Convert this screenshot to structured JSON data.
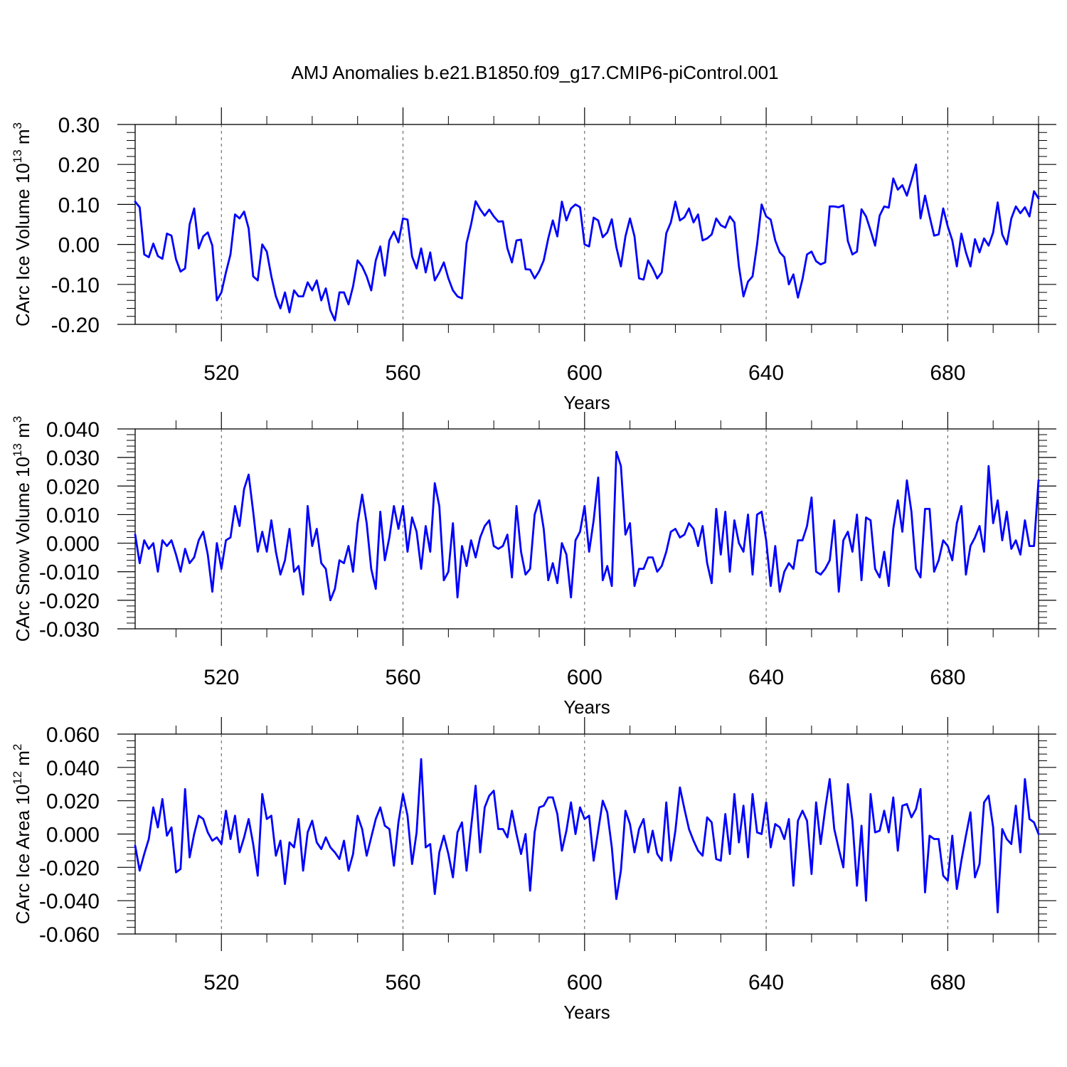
{
  "figure": {
    "title": "AMJ Anomalies b.e21.B1850.f09_g17.CMIP6-piControl.001"
  },
  "chart_data": [
    {
      "type": "line",
      "title": "AMJ Anomalies b.e21.B1850.f09_g17.CMIP6-piControl.001",
      "xlabel": "Years",
      "ylabel_text": "CArc Ice Volume 10",
      "ylabel_exp": "13",
      "ylabel_unit": " m",
      "ylabel_unit_exp": "3",
      "xlim": [
        501,
        700
      ],
      "ylim": [
        -0.2,
        0.3
      ],
      "yticks": [
        -0.2,
        -0.1,
        0.0,
        0.1,
        0.2,
        0.3
      ],
      "ytick_labels": [
        "-0.20",
        "-0.10",
        "0.00",
        "0.10",
        "0.20",
        "0.30"
      ],
      "xticks": [
        520,
        560,
        600,
        640,
        680
      ],
      "xtick_labels": [
        "520",
        "560",
        "600",
        "640",
        "680"
      ],
      "series": [
        {
          "name": "CArc Ice Volume",
          "color": "#0000ff",
          "x_start": 501,
          "values": [
            0.107,
            0.093,
            -0.025,
            -0.032,
            0.002,
            -0.029,
            -0.036,
            0.027,
            0.022,
            -0.037,
            -0.068,
            -0.06,
            0.05,
            0.09,
            -0.01,
            0.02,
            0.03,
            -0.003,
            -0.14,
            -0.12,
            -0.07,
            -0.025,
            0.075,
            0.065,
            0.082,
            0.04,
            -0.08,
            -0.09,
            0.0,
            -0.018,
            -0.08,
            -0.13,
            -0.16,
            -0.12,
            -0.17,
            -0.115,
            -0.13,
            -0.13,
            -0.095,
            -0.115,
            -0.09,
            -0.14,
            -0.11,
            -0.165,
            -0.19,
            -0.12,
            -0.12,
            -0.15,
            -0.105,
            -0.04,
            -0.055,
            -0.08,
            -0.115,
            -0.04,
            -0.005,
            -0.078,
            0.01,
            0.032,
            0.005,
            0.065,
            0.062,
            -0.03,
            -0.06,
            -0.01,
            -0.07,
            -0.02,
            -0.09,
            -0.07,
            -0.045,
            -0.085,
            -0.115,
            -0.13,
            -0.135,
            0.003,
            0.05,
            0.108,
            0.088,
            0.072,
            0.087,
            0.07,
            0.057,
            0.058,
            -0.01,
            -0.045,
            0.01,
            0.012,
            -0.062,
            -0.063,
            -0.085,
            -0.067,
            -0.04,
            0.015,
            0.06,
            0.02,
            0.107,
            0.06,
            0.09,
            0.1,
            0.093,
            0.0,
            -0.005,
            0.067,
            0.06,
            0.018,
            0.03,
            0.063,
            -0.007,
            -0.055,
            0.02,
            0.065,
            0.02,
            -0.085,
            -0.088,
            -0.04,
            -0.06,
            -0.085,
            -0.07,
            0.028,
            0.055,
            0.107,
            0.06,
            0.068,
            0.09,
            0.055,
            0.075,
            0.01,
            0.015,
            0.025,
            0.065,
            0.048,
            0.042,
            0.07,
            0.055,
            -0.055,
            -0.13,
            -0.093,
            -0.08,
            0.0,
            0.1,
            0.07,
            0.062,
            0.01,
            -0.02,
            -0.032,
            -0.1,
            -0.075,
            -0.133,
            -0.087,
            -0.025,
            -0.018,
            -0.042,
            -0.05,
            -0.045,
            0.095,
            0.095,
            0.093,
            0.098,
            0.008,
            -0.025,
            -0.018,
            0.088,
            0.07,
            0.035,
            -0.003,
            0.072,
            0.095,
            0.092,
            0.165,
            0.137,
            0.148,
            0.122,
            0.16,
            0.2,
            0.065,
            0.122,
            0.07,
            0.022,
            0.025,
            0.09,
            0.045,
            0.01,
            -0.055,
            0.027,
            -0.02,
            -0.055,
            0.013,
            -0.02,
            0.015,
            -0.003,
            0.03,
            0.105,
            0.025,
            0.0,
            0.065,
            0.095,
            0.078,
            0.093,
            0.07,
            0.133,
            0.115
          ]
        }
      ]
    },
    {
      "type": "line",
      "xlabel": "Years",
      "ylabel_text": "CArc Snow Volume 10",
      "ylabel_exp": "13",
      "ylabel_unit": " m",
      "ylabel_unit_exp": "3",
      "xlim": [
        501,
        700
      ],
      "ylim": [
        -0.03,
        0.04
      ],
      "yticks": [
        -0.03,
        -0.02,
        -0.01,
        0.0,
        0.01,
        0.02,
        0.03,
        0.04
      ],
      "ytick_labels": [
        "-0.030",
        "-0.020",
        "-0.010",
        "0.000",
        "0.010",
        "0.020",
        "0.030",
        "0.040"
      ],
      "xticks": [
        520,
        560,
        600,
        640,
        680
      ],
      "xtick_labels": [
        "520",
        "560",
        "600",
        "640",
        "680"
      ],
      "series": [
        {
          "name": "CArc Snow Volume",
          "color": "#0000ff",
          "x_start": 501,
          "values": [
            0.003,
            -0.007,
            0.001,
            -0.002,
            0.0,
            -0.01,
            0.001,
            -0.001,
            0.001,
            -0.004,
            -0.01,
            -0.002,
            -0.007,
            -0.005,
            0.001,
            0.004,
            -0.004,
            -0.017,
            0.0,
            -0.009,
            0.001,
            0.002,
            0.013,
            0.006,
            0.019,
            0.024,
            0.011,
            -0.003,
            0.004,
            -0.003,
            0.008,
            -0.003,
            -0.011,
            -0.006,
            0.005,
            -0.01,
            -0.008,
            -0.018,
            0.013,
            -0.001,
            0.005,
            -0.007,
            -0.009,
            -0.02,
            -0.016,
            -0.006,
            -0.007,
            -0.001,
            -0.01,
            0.007,
            0.017,
            0.007,
            -0.009,
            -0.016,
            0.011,
            -0.006,
            0.002,
            0.013,
            0.005,
            0.013,
            -0.003,
            0.009,
            0.004,
            -0.009,
            0.006,
            -0.003,
            0.021,
            0.013,
            -0.013,
            -0.01,
            0.007,
            -0.019,
            -0.001,
            -0.008,
            0.001,
            -0.005,
            0.002,
            0.006,
            0.008,
            -0.001,
            -0.002,
            -0.001,
            0.003,
            -0.012,
            0.013,
            -0.003,
            -0.011,
            -0.009,
            0.01,
            0.015,
            0.005,
            -0.013,
            -0.007,
            -0.014,
            0.0,
            -0.004,
            -0.019,
            0.001,
            0.004,
            0.013,
            -0.003,
            0.008,
            0.023,
            -0.013,
            -0.008,
            -0.015,
            0.032,
            0.027,
            0.003,
            0.007,
            -0.015,
            -0.009,
            -0.009,
            -0.005,
            -0.005,
            -0.01,
            -0.008,
            -0.003,
            0.004,
            0.005,
            0.002,
            0.003,
            0.007,
            0.005,
            -0.001,
            0.006,
            -0.007,
            -0.014,
            0.012,
            -0.004,
            0.011,
            -0.01,
            0.008,
            0.0,
            -0.003,
            0.01,
            -0.011,
            0.01,
            0.011,
            0.001,
            -0.015,
            -0.001,
            -0.017,
            -0.01,
            -0.007,
            -0.009,
            0.001,
            0.001,
            0.006,
            0.016,
            -0.01,
            -0.011,
            -0.009,
            -0.006,
            0.008,
            -0.017,
            0.001,
            0.004,
            -0.003,
            0.01,
            -0.013,
            0.009,
            0.008,
            -0.009,
            -0.012,
            -0.003,
            -0.015,
            0.005,
            0.015,
            0.004,
            0.022,
            0.011,
            -0.009,
            -0.012,
            0.012,
            0.012,
            -0.01,
            -0.006,
            0.001,
            -0.001,
            -0.006,
            0.007,
            0.013,
            -0.011,
            -0.001,
            0.002,
            0.006,
            -0.003,
            0.027,
            0.007,
            0.015,
            0.001,
            0.011,
            -0.002,
            0.001,
            -0.004,
            0.008,
            -0.001,
            -0.001,
            0.022
          ]
        }
      ]
    },
    {
      "type": "line",
      "xlabel": "Years",
      "ylabel_text": "CArc Ice Area 10",
      "ylabel_exp": "12",
      "ylabel_unit": " m",
      "ylabel_unit_exp": "2",
      "xlim": [
        501,
        700
      ],
      "ylim": [
        -0.06,
        0.06
      ],
      "yticks": [
        -0.06,
        -0.04,
        -0.02,
        0.0,
        0.02,
        0.04,
        0.06
      ],
      "ytick_labels": [
        "-0.060",
        "-0.040",
        "-0.020",
        "0.000",
        "0.020",
        "0.040",
        "0.060"
      ],
      "xticks": [
        520,
        560,
        600,
        640,
        680
      ],
      "xtick_labels": [
        "520",
        "560",
        "600",
        "640",
        "680"
      ],
      "series": [
        {
          "name": "CArc Ice Area",
          "color": "#0000ff",
          "x_start": 501,
          "values": [
            -0.007,
            -0.022,
            -0.012,
            -0.003,
            0.016,
            0.004,
            0.021,
            -0.001,
            0.004,
            -0.023,
            -0.021,
            0.027,
            -0.014,
            0.0,
            0.011,
            0.009,
            0.001,
            -0.004,
            -0.002,
            -0.006,
            0.014,
            -0.003,
            0.011,
            -0.011,
            -0.002,
            0.009,
            -0.006,
            -0.025,
            0.024,
            0.009,
            0.011,
            -0.013,
            -0.004,
            -0.03,
            -0.005,
            -0.008,
            0.009,
            -0.022,
            0.001,
            0.008,
            -0.005,
            -0.009,
            -0.002,
            -0.008,
            -0.011,
            -0.015,
            -0.004,
            -0.022,
            -0.012,
            0.011,
            0.003,
            -0.013,
            -0.002,
            0.009,
            0.016,
            0.005,
            0.003,
            -0.019,
            0.007,
            0.024,
            0.011,
            -0.018,
            0.001,
            0.045,
            -0.008,
            -0.006,
            -0.036,
            -0.011,
            -0.001,
            -0.012,
            -0.026,
            0.001,
            0.007,
            -0.022,
            0.004,
            0.029,
            -0.011,
            0.016,
            0.023,
            0.026,
            0.003,
            0.003,
            -0.002,
            0.014,
            0.0,
            -0.012,
            0.0,
            -0.034,
            0.001,
            0.016,
            0.017,
            0.022,
            0.022,
            0.012,
            -0.01,
            0.002,
            0.019,
            0.0,
            0.016,
            0.009,
            0.011,
            -0.016,
            0.002,
            0.02,
            0.013,
            -0.008,
            -0.039,
            -0.022,
            0.014,
            0.006,
            -0.011,
            0.003,
            0.009,
            -0.011,
            0.002,
            -0.012,
            -0.016,
            0.019,
            -0.016,
            0.002,
            0.028,
            0.015,
            0.003,
            -0.004,
            -0.01,
            -0.013,
            0.01,
            0.007,
            -0.015,
            -0.016,
            0.012,
            -0.012,
            0.024,
            -0.005,
            0.017,
            -0.014,
            0.024,
            0.001,
            0.0,
            0.019,
            -0.008,
            0.006,
            0.004,
            -0.003,
            0.009,
            -0.031,
            0.008,
            0.014,
            0.008,
            -0.024,
            0.019,
            -0.006,
            0.015,
            0.033,
            0.003,
            -0.009,
            -0.02,
            0.03,
            0.008,
            -0.031,
            0.005,
            -0.04,
            0.024,
            0.001,
            0.002,
            0.014,
            0.001,
            0.022,
            -0.01,
            0.017,
            0.018,
            0.01,
            0.015,
            0.027,
            -0.035,
            -0.001,
            -0.003,
            -0.003,
            -0.025,
            -0.028,
            -0.001,
            -0.033,
            -0.016,
            -0.001,
            0.013,
            -0.026,
            -0.018,
            0.019,
            0.023,
            0.004,
            -0.047,
            0.003,
            -0.003,
            -0.006,
            0.017,
            -0.011,
            0.033,
            0.009,
            0.007,
            0.0
          ]
        }
      ]
    }
  ]
}
